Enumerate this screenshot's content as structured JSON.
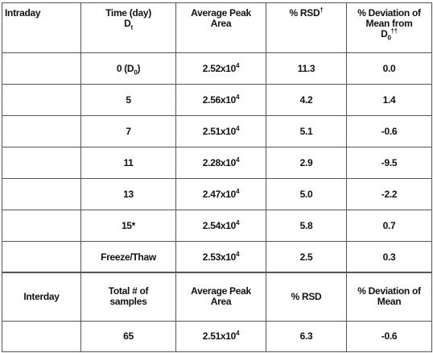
{
  "intraday": {
    "header": [
      [
        [
          "Intraday"
        ]
      ],
      [
        [
          "Time (day)"
        ],
        [
          "D",
          {
            "sub": "t"
          }
        ]
      ],
      [
        [
          "Average Peak"
        ],
        [
          "Area"
        ]
      ],
      [
        [
          "% RSD",
          {
            "sup": "†"
          }
        ]
      ],
      [
        [
          "% Deviation of"
        ],
        [
          "Mean from"
        ],
        [
          "D",
          {
            "sub": "0"
          },
          {
            "sup": "††"
          }
        ]
      ]
    ],
    "rows": [
      [
        null,
        [
          "0 (D",
          {
            "sub": "0"
          },
          ")"
        ],
        [
          "2.52x10",
          {
            "sup": "4"
          }
        ],
        [
          "11.3"
        ],
        [
          "0.0"
        ]
      ],
      [
        null,
        [
          "5"
        ],
        [
          "2.56x10",
          {
            "sup": "4"
          }
        ],
        [
          "4.2"
        ],
        [
          "1.4"
        ]
      ],
      [
        null,
        [
          "7"
        ],
        [
          "2.51x10",
          {
            "sup": "4"
          }
        ],
        [
          "5.1"
        ],
        [
          "-0.6"
        ]
      ],
      [
        null,
        [
          "11"
        ],
        [
          "2.28x10",
          {
            "sup": "4"
          }
        ],
        [
          "2.9"
        ],
        [
          "-9.5"
        ]
      ],
      [
        null,
        [
          "13"
        ],
        [
          "2.47x10",
          {
            "sup": "4"
          }
        ],
        [
          "5.0"
        ],
        [
          "-2.2"
        ]
      ],
      [
        null,
        [
          "15*"
        ],
        [
          "2.54x10",
          {
            "sup": "4"
          }
        ],
        [
          "5.8"
        ],
        [
          "0.7"
        ]
      ],
      [
        null,
        [
          "Freeze/Thaw"
        ],
        [
          "2.53x10",
          {
            "sup": "4"
          }
        ],
        [
          "2.5"
        ],
        [
          "0.3"
        ]
      ]
    ]
  },
  "interday": {
    "header": [
      [
        [
          "Interday"
        ]
      ],
      [
        [
          "Total # of"
        ],
        [
          "samples"
        ]
      ],
      [
        [
          "Average Peak"
        ],
        [
          "Area"
        ]
      ],
      [
        [
          "% RSD"
        ]
      ],
      [
        [
          "% Deviation of"
        ],
        [
          "Mean"
        ]
      ]
    ],
    "rows": [
      [
        null,
        [
          "65"
        ],
        [
          "2.51x10",
          {
            "sup": "4"
          }
        ],
        [
          "6.3"
        ],
        [
          "-0.6"
        ]
      ]
    ]
  }
}
